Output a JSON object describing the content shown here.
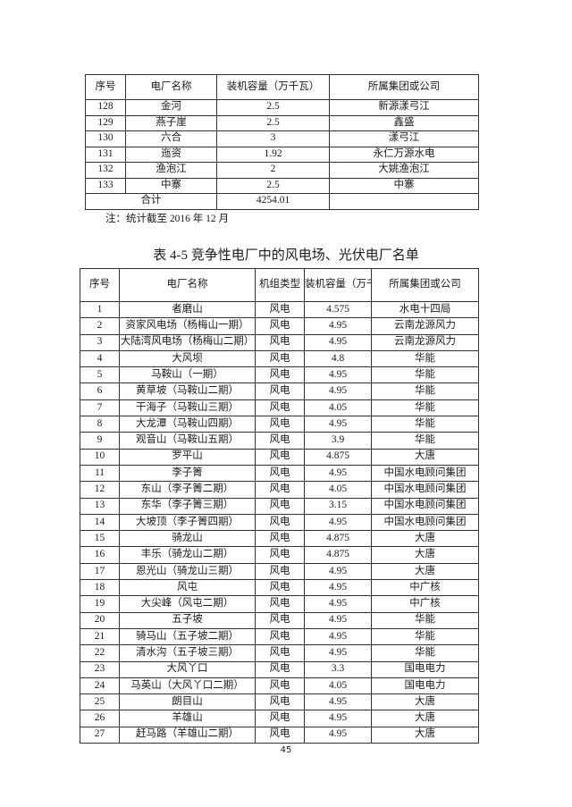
{
  "table1": {
    "headers": [
      "序号",
      "电厂名称",
      "装机容量（万千瓦）",
      "所属集团或公司"
    ],
    "rows": [
      [
        "128",
        "金河",
        "2.5",
        "新源漾弓江"
      ],
      [
        "129",
        "燕子崖",
        "2.5",
        "鑫盛"
      ],
      [
        "130",
        "六合",
        "3",
        "漾弓江"
      ],
      [
        "131",
        "迤资",
        "1.92",
        "永仁万源水电"
      ],
      [
        "132",
        "渔泡江",
        "2",
        "大姚渔泡江"
      ],
      [
        "133",
        "中寨",
        "2.5",
        "中寨"
      ]
    ],
    "total_label": "合计",
    "total_value": "4254.01",
    "note": "注：统计截至 2016 年 12 月"
  },
  "table2": {
    "title": "表 4-5 竞争性电厂中的风电场、光伏电厂名单",
    "headers": [
      "序号",
      "电厂名称",
      "机组类型",
      "装机容量（万千瓦）",
      "所属集团或公司"
    ],
    "rows": [
      [
        "1",
        "者磨山",
        "风电",
        "4.575",
        "水电十四局"
      ],
      [
        "2",
        "资家风电场（杨梅山一期）",
        "风电",
        "4.95",
        "云南龙源风力"
      ],
      [
        "3",
        "大陆湾风电场（杨梅山二期）",
        "风电",
        "4.95",
        "云南龙源风力"
      ],
      [
        "4",
        "大风坝",
        "风电",
        "4.8",
        "华能"
      ],
      [
        "5",
        "马鞍山（一期）",
        "风电",
        "4.95",
        "华能"
      ],
      [
        "6",
        "黄草坡（马鞍山二期）",
        "风电",
        "4.95",
        "华能"
      ],
      [
        "7",
        "干海子（马鞍山三期）",
        "风电",
        "4.05",
        "华能"
      ],
      [
        "8",
        "大龙潭（马鞍山四期）",
        "风电",
        "4.95",
        "华能"
      ],
      [
        "9",
        "观音山（马鞍山五期）",
        "风电",
        "3.9",
        "华能"
      ],
      [
        "10",
        "罗平山",
        "风电",
        "4.875",
        "大唐"
      ],
      [
        "11",
        "李子箐",
        "风电",
        "4.95",
        "中国水电顾问集团"
      ],
      [
        "12",
        "东山（李子箐二期）",
        "风电",
        "4.05",
        "中国水电顾问集团"
      ],
      [
        "13",
        "东华（李子箐三期）",
        "风电",
        "3.15",
        "中国水电顾问集团"
      ],
      [
        "14",
        "大坡顶（李子箐四期）",
        "风电",
        "4.95",
        "中国水电顾问集团"
      ],
      [
        "15",
        "骑龙山",
        "风电",
        "4.875",
        "大唐"
      ],
      [
        "16",
        "丰乐（骑龙山二期）",
        "风电",
        "4.875",
        "大唐"
      ],
      [
        "17",
        "恩光山（骑龙山三期）",
        "风电",
        "4.95",
        "大唐"
      ],
      [
        "18",
        "风屯",
        "风电",
        "4.95",
        "中广核"
      ],
      [
        "19",
        "大尖峰（风屯二期）",
        "风电",
        "4.95",
        "中广核"
      ],
      [
        "20",
        "五子坡",
        "风电",
        "4.95",
        "华能"
      ],
      [
        "21",
        "骑马山（五子坡二期）",
        "风电",
        "4.95",
        "华能"
      ],
      [
        "22",
        "清水沟（五子坡三期）",
        "风电",
        "4.95",
        "华能"
      ],
      [
        "23",
        "大风丫口",
        "风电",
        "3.3",
        "国电电力"
      ],
      [
        "24",
        "马英山（大风丫口二期）",
        "风电",
        "4.05",
        "国电电力"
      ],
      [
        "25",
        "朗目山",
        "风电",
        "4.95",
        "大唐"
      ],
      [
        "26",
        "羊雄山",
        "风电",
        "4.95",
        "大唐"
      ],
      [
        "27",
        "赶马路（羊雄山二期）",
        "风电",
        "4.95",
        "大唐"
      ]
    ]
  },
  "page_number": "45"
}
